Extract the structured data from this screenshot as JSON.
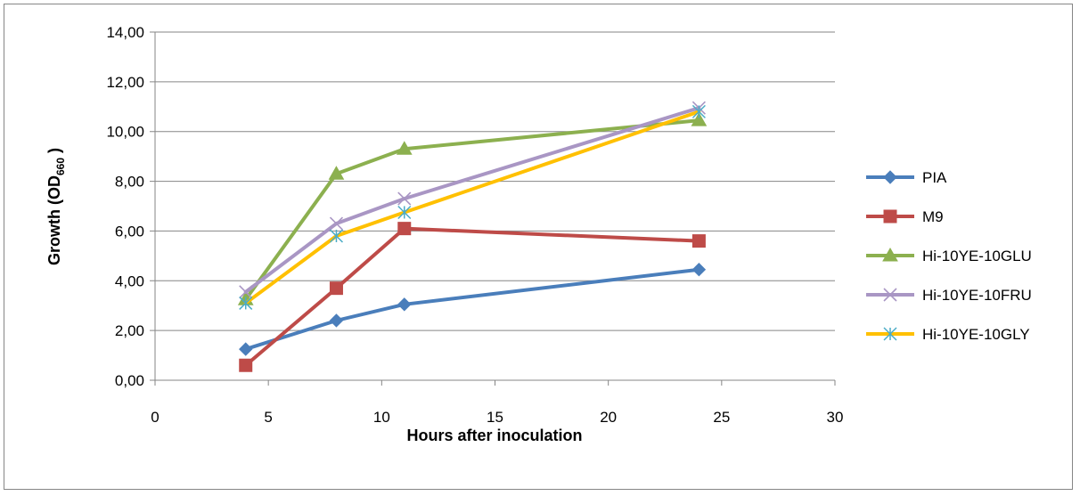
{
  "chart_data": {
    "type": "line",
    "title": "",
    "xlabel": "Hours after inoculation",
    "ylabel": {
      "prefix": "Growth (OD",
      "subscript": "660",
      "suffix": " )"
    },
    "xlim": [
      0,
      30
    ],
    "ylim": [
      0,
      14
    ],
    "x_ticks": [
      0,
      5,
      10,
      15,
      20,
      25,
      30
    ],
    "x_tick_labels": [
      "0",
      "5",
      "10",
      "15",
      "20",
      "25",
      "30"
    ],
    "y_ticks": [
      0,
      2,
      4,
      6,
      8,
      10,
      12,
      14
    ],
    "y_tick_labels": [
      "0,00",
      "2,00",
      "4,00",
      "6,00",
      "8,00",
      "10,00",
      "12,00",
      "14,00"
    ],
    "grid": "horizontal",
    "legend_position": "right",
    "x": [
      4,
      8,
      11,
      24
    ],
    "series": [
      {
        "name": "PIA",
        "values": [
          1.25,
          2.4,
          3.05,
          4.45
        ],
        "color": "#4A7EBB",
        "marker": "diamond"
      },
      {
        "name": "M9",
        "values": [
          0.6,
          3.7,
          6.1,
          5.6
        ],
        "color": "#BE4B48",
        "marker": "square"
      },
      {
        "name": "Hi-10YE-10GLU",
        "values": [
          3.25,
          8.3,
          9.3,
          10.45
        ],
        "color": "#8CB04F",
        "marker": "triangle"
      },
      {
        "name": "Hi-10YE-10FRU",
        "values": [
          3.55,
          6.3,
          7.3,
          10.95
        ],
        "color": "#A996C4",
        "marker": "x"
      },
      {
        "name": "Hi-10YE-10GLY",
        "values": [
          3.1,
          5.8,
          6.75,
          10.8
        ],
        "color": "#FFC000",
        "marker": "star",
        "marker_color": "#4BACC6"
      }
    ]
  }
}
